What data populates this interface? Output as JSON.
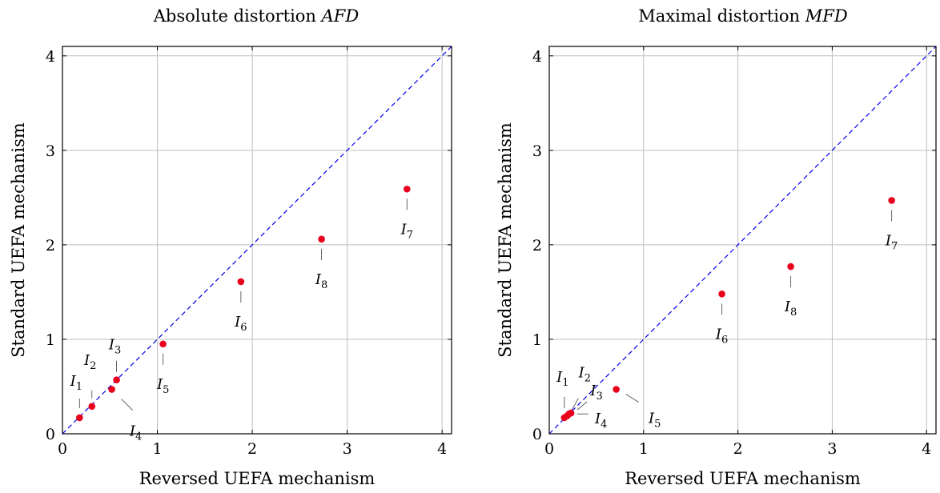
{
  "chart_data": [
    {
      "type": "scatter",
      "title": "Absolute distortion AFD",
      "title_plain": "Absolute distortion ",
      "title_italic": "AFD",
      "xlabel": "Reversed UEFA mechanism",
      "ylabel": "Standard UEFA mechanism",
      "xlim": [
        0,
        4.1
      ],
      "ylim": [
        0,
        4.1
      ],
      "xticks": [
        0,
        1,
        2,
        3,
        4
      ],
      "yticks": [
        0,
        1,
        2,
        3,
        4
      ],
      "grid": true,
      "reference_line": "y = x",
      "point_color": "#e8001c",
      "line_color": "#0000ee",
      "points": [
        {
          "label": "I",
          "sub": "1",
          "x": 0.18,
          "y": 0.17
        },
        {
          "label": "I",
          "sub": "2",
          "x": 0.31,
          "y": 0.29
        },
        {
          "label": "I",
          "sub": "3",
          "x": 0.57,
          "y": 0.57
        },
        {
          "label": "I",
          "sub": "4",
          "x": 0.52,
          "y": 0.47
        },
        {
          "label": "I",
          "sub": "5",
          "x": 1.06,
          "y": 0.95
        },
        {
          "label": "I",
          "sub": "6",
          "x": 1.88,
          "y": 1.61
        },
        {
          "label": "I",
          "sub": "7",
          "x": 3.63,
          "y": 2.59
        },
        {
          "label": "I",
          "sub": "8",
          "x": 2.73,
          "y": 2.06
        }
      ]
    },
    {
      "type": "scatter",
      "title": "Maximal distortion MFD",
      "title_plain": "Maximal distortion ",
      "title_italic": "MFD",
      "xlabel": "Reversed UEFA mechanism",
      "ylabel": "Standard UEFA mechanism",
      "xlim": [
        0,
        4.1
      ],
      "ylim": [
        0,
        4.1
      ],
      "xticks": [
        0,
        1,
        2,
        3,
        4
      ],
      "yticks": [
        0,
        1,
        2,
        3,
        4
      ],
      "grid": true,
      "reference_line": "y = x",
      "point_color": "#e8001c",
      "line_color": "#0000ee",
      "points": [
        {
          "label": "I",
          "sub": "1",
          "x": 0.16,
          "y": 0.17
        },
        {
          "label": "I",
          "sub": "2",
          "x": 0.19,
          "y": 0.19
        },
        {
          "label": "I",
          "sub": "3",
          "x": 0.23,
          "y": 0.22
        },
        {
          "label": "I",
          "sub": "4",
          "x": 0.21,
          "y": 0.21
        },
        {
          "label": "I",
          "sub": "5",
          "x": 0.71,
          "y": 0.47
        },
        {
          "label": "I",
          "sub": "6",
          "x": 1.83,
          "y": 1.48
        },
        {
          "label": "I",
          "sub": "7",
          "x": 3.63,
          "y": 2.47
        },
        {
          "label": "I",
          "sub": "8",
          "x": 2.56,
          "y": 1.77
        }
      ]
    }
  ]
}
